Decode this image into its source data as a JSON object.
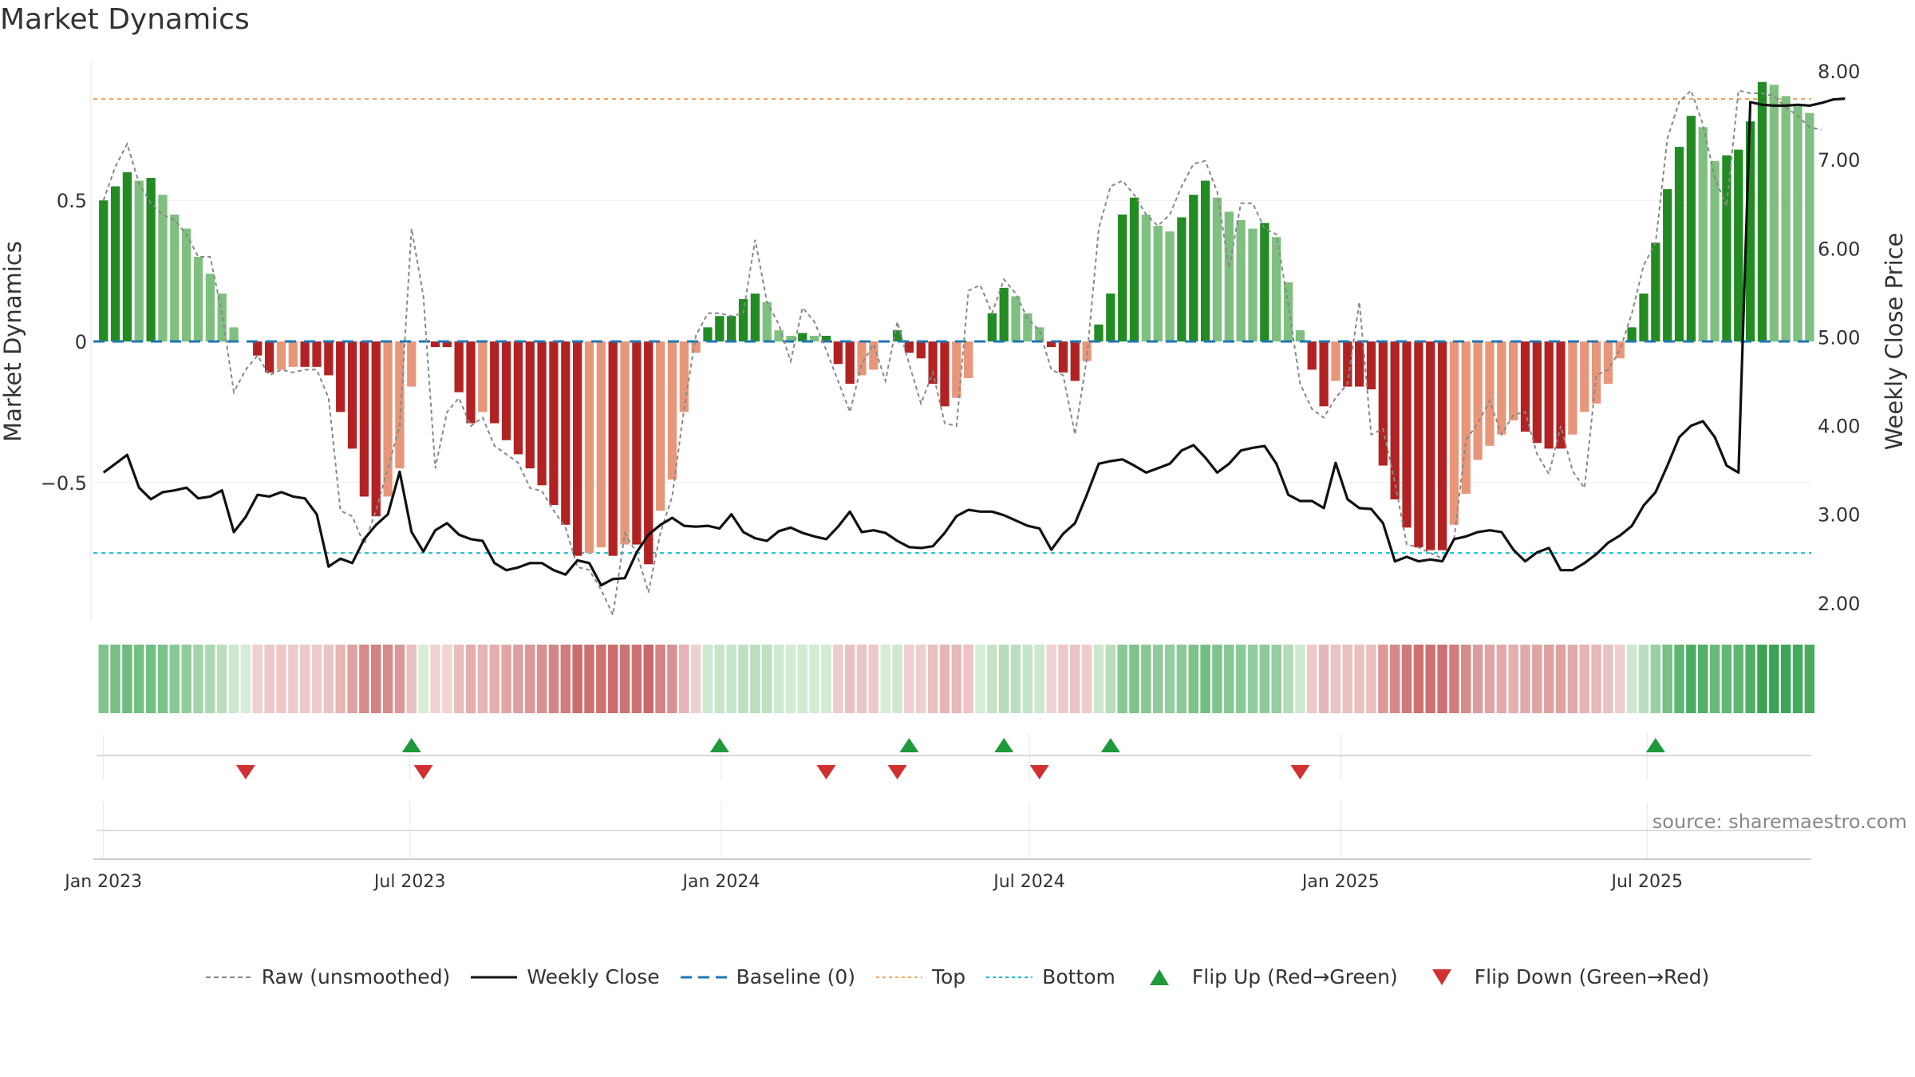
{
  "colors": {
    "pos_strong": "#228b22",
    "pos_weak": "#7fbf7f",
    "neg_strong": "#b22222",
    "neg_weak": "#e8967a",
    "price_line": "#111111",
    "raw_line": "#888888",
    "baseline": "#1f77b4",
    "top_line": "#f4a460",
    "bottom_line": "#17becf",
    "flip_up": "#1e9a3a",
    "flip_down": "#d03030"
  },
  "chart_data": {
    "type": "bar",
    "title": "Market Dynamics",
    "source": "source: sharemaestro.com",
    "ylabel_left": "Market Dynamics",
    "ylabel_right": "Weekly Close Price",
    "x_start": "2022-12-26",
    "x_end": "2025-10-06",
    "xtick_labels": [
      {
        "date": "2023-01-01",
        "label": "Jan 2023"
      },
      {
        "date": "2023-07-01",
        "label": "Jul 2023"
      },
      {
        "date": "2024-01-01",
        "label": "Jan 2024"
      },
      {
        "date": "2024-07-01",
        "label": "Jul 2024"
      },
      {
        "date": "2025-01-01",
        "label": "Jan 2025"
      },
      {
        "date": "2025-07-01",
        "label": "Jul 2025"
      }
    ],
    "ylim_left": [
      -0.99,
      0.99
    ],
    "yticks_left": [
      {
        "v": 0.5,
        "label": "0.5"
      },
      {
        "v": 0,
        "label": "0"
      },
      {
        "v": -0.5,
        "label": "−0.5"
      }
    ],
    "ylim_right": [
      1.8,
      8.1
    ],
    "yticks_right": [
      "2.00",
      "3.00",
      "4.00",
      "5.00",
      "6.00",
      "7.00",
      "8.00"
    ],
    "top_level": 0.86,
    "bottom_level": -0.75,
    "baseline": 0,
    "week_start": "2023-01-01",
    "week_step_days": 7,
    "dynamics": [
      0.5,
      0.55,
      0.6,
      0.57,
      0.58,
      0.52,
      0.45,
      0.4,
      0.3,
      0.24,
      0.17,
      0.05,
      0,
      -0.05,
      -0.11,
      -0.1,
      -0.09,
      -0.09,
      -0.09,
      -0.12,
      -0.25,
      -0.38,
      -0.55,
      -0.62,
      -0.55,
      -0.45,
      -0.16,
      0,
      -0.02,
      -0.02,
      -0.18,
      -0.29,
      -0.25,
      -0.29,
      -0.35,
      -0.4,
      -0.45,
      -0.51,
      -0.58,
      -0.65,
      -0.76,
      -0.75,
      -0.73,
      -0.76,
      -0.72,
      -0.72,
      -0.79,
      -0.6,
      -0.49,
      -0.25,
      -0.04,
      0.05,
      0.09,
      0.09,
      0.15,
      0.17,
      0.14,
      0.04,
      0.02,
      0.03,
      0.02,
      0.02,
      -0.08,
      -0.15,
      -0.12,
      -0.1,
      0,
      0.04,
      -0.04,
      -0.06,
      -0.15,
      -0.23,
      -0.2,
      -0.13,
      0,
      0.1,
      0.19,
      0.16,
      0.1,
      0.05,
      -0.02,
      -0.11,
      -0.14,
      -0.07,
      0.06,
      0.17,
      0.45,
      0.51,
      0.45,
      0.41,
      0.39,
      0.44,
      0.52,
      0.57,
      0.51,
      0.46,
      0.43,
      0.4,
      0.42,
      0.37,
      0.21,
      0.04,
      -0.1,
      -0.23,
      -0.14,
      -0.16,
      -0.16,
      -0.17,
      -0.44,
      -0.56,
      -0.66,
      -0.73,
      -0.74,
      -0.74,
      -0.65,
      -0.54,
      -0.42,
      -0.37,
      -0.33,
      -0.28,
      -0.32,
      -0.36,
      -0.38,
      -0.38,
      -0.33,
      -0.25,
      -0.22,
      -0.15,
      -0.06,
      0.05,
      0.17,
      0.35,
      0.54,
      0.69,
      0.8,
      0.76,
      0.64,
      0.66,
      0.68,
      0.78,
      0.92,
      0.91,
      0.87,
      0.84,
      0.81
    ],
    "raw": [
      0.5,
      0.62,
      0.7,
      0.56,
      0.49,
      0.45,
      0.43,
      0.38,
      0.3,
      0.3,
      0.1,
      -0.18,
      -0.1,
      -0.05,
      -0.12,
      -0.1,
      -0.11,
      -0.1,
      -0.1,
      -0.2,
      -0.6,
      -0.62,
      -0.72,
      -0.6,
      -0.45,
      -0.3,
      0.4,
      0.16,
      -0.45,
      -0.25,
      -0.2,
      -0.3,
      -0.27,
      -0.37,
      -0.4,
      -0.43,
      -0.52,
      -0.53,
      -0.6,
      -0.66,
      -0.8,
      -0.81,
      -0.88,
      -0.97,
      -0.68,
      -0.75,
      -0.89,
      -0.68,
      -0.55,
      -0.24,
      0.02,
      0.1,
      0.1,
      0.09,
      0.1,
      0.36,
      0.14,
      0.06,
      -0.07,
      0.12,
      0.07,
      -0.03,
      -0.14,
      -0.25,
      -0.08,
      -0.01,
      -0.14,
      0.07,
      -0.08,
      -0.22,
      -0.11,
      -0.29,
      -0.3,
      0.18,
      0.2,
      0.1,
      0.22,
      0.17,
      0.08,
      0.04,
      -0.1,
      -0.12,
      -0.33,
      -0.06,
      0.4,
      0.55,
      0.57,
      0.52,
      0.45,
      0.41,
      0.45,
      0.55,
      0.63,
      0.64,
      0.53,
      0.26,
      0.49,
      0.49,
      0.4,
      0.38,
      0.13,
      -0.15,
      -0.24,
      -0.27,
      -0.2,
      -0.15,
      0.14,
      -0.33,
      -0.31,
      -0.5,
      -0.72,
      -0.73,
      -0.75,
      -0.77,
      -0.7,
      -0.35,
      -0.29,
      -0.21,
      -0.33,
      -0.26,
      -0.25,
      -0.4,
      -0.47,
      -0.3,
      -0.46,
      -0.52,
      -0.12,
      -0.1,
      -0.03,
      0.1,
      0.27,
      0.35,
      0.72,
      0.85,
      0.89,
      0.77,
      0.58,
      0.48,
      0.89,
      0.88,
      0.88,
      0.87,
      0.83,
      0.8,
      0.76,
      0.75
    ],
    "close": [
      3.47,
      3.57,
      3.67,
      3.3,
      3.17,
      3.25,
      3.27,
      3.3,
      3.18,
      3.2,
      3.27,
      2.8,
      2.97,
      3.22,
      3.2,
      3.25,
      3.2,
      3.18,
      3.0,
      2.41,
      2.5,
      2.45,
      2.72,
      2.88,
      3.0,
      3.48,
      2.8,
      2.58,
      2.82,
      2.9,
      2.77,
      2.72,
      2.7,
      2.45,
      2.37,
      2.4,
      2.45,
      2.45,
      2.37,
      2.32,
      2.48,
      2.45,
      2.2,
      2.27,
      2.28,
      2.57,
      2.77,
      2.88,
      2.96,
      2.87,
      2.86,
      2.87,
      2.84,
      3.0,
      2.8,
      2.73,
      2.7,
      2.81,
      2.85,
      2.79,
      2.75,
      2.72,
      2.86,
      3.03,
      2.8,
      2.82,
      2.79,
      2.7,
      2.63,
      2.62,
      2.64,
      2.79,
      2.98,
      3.05,
      3.03,
      3.03,
      2.99,
      2.93,
      2.87,
      2.84,
      2.6,
      2.78,
      2.9,
      3.22,
      3.57,
      3.6,
      3.62,
      3.55,
      3.47,
      3.52,
      3.57,
      3.72,
      3.78,
      3.64,
      3.47,
      3.57,
      3.72,
      3.75,
      3.77,
      3.57,
      3.22,
      3.15,
      3.15,
      3.07,
      3.58,
      3.17,
      3.07,
      3.06,
      2.9,
      2.47,
      2.52,
      2.47,
      2.49,
      2.47,
      2.72,
      2.75,
      2.8,
      2.82,
      2.8,
      2.6,
      2.47,
      2.57,
      2.62,
      2.37,
      2.37,
      2.45,
      2.55,
      2.68,
      2.76,
      2.87,
      3.1,
      3.25,
      3.55,
      3.87,
      4.0,
      4.05,
      3.87,
      3.55,
      3.47,
      7.65,
      7.62,
      7.61,
      7.61,
      7.62,
      7.61,
      7.64,
      7.68,
      7.69
    ],
    "flip_up_weeks": [
      26,
      52,
      68,
      76,
      85,
      131
    ],
    "flip_down_weeks": [
      12,
      27,
      61,
      67,
      79,
      101
    ]
  },
  "legend": [
    {
      "label": "Raw (unsmoothed)",
      "icon": "dashed-gray-line"
    },
    {
      "label": "Weekly Close",
      "icon": "solid-black-line"
    },
    {
      "label": "Baseline (0)",
      "icon": "dashed-blue-line"
    },
    {
      "label": "Top",
      "icon": "dotted-orange-line"
    },
    {
      "label": "Bottom",
      "icon": "dotted-cyan-line"
    },
    {
      "label": "Flip Up (Red→Green)",
      "icon": "triangle-up-icon"
    },
    {
      "label": "Flip Down (Green→Red)",
      "icon": "triangle-down-icon"
    }
  ]
}
